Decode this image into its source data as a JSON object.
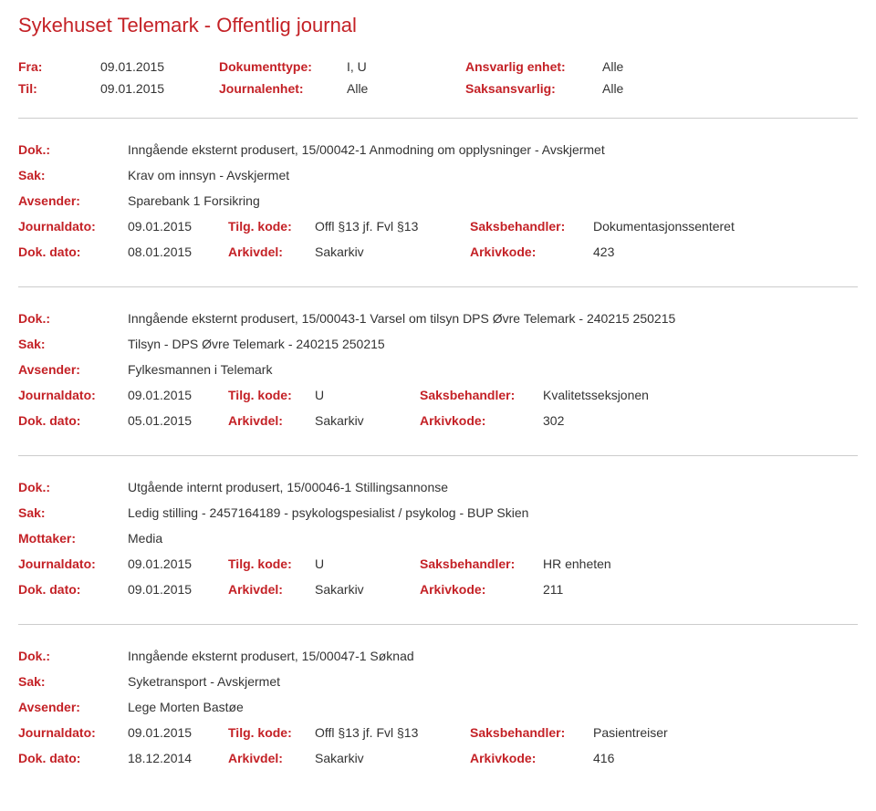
{
  "title": "Sykehuset Telemark - Offentlig journal",
  "header": {
    "fra_label": "Fra:",
    "fra_value": "09.01.2015",
    "til_label": "Til:",
    "til_value": "09.01.2015",
    "dokumenttype_label": "Dokumenttype:",
    "dokumenttype_value": "I, U",
    "journalenhet_label": "Journalenhet:",
    "journalenhet_value": "Alle",
    "ansvarlig_enhet_label": "Ansvarlig enhet:",
    "ansvarlig_enhet_value": "Alle",
    "saksansvarlig_label": "Saksansvarlig:",
    "saksansvarlig_value": "Alle"
  },
  "labels": {
    "dok": "Dok.:",
    "sak": "Sak:",
    "avsender": "Avsender:",
    "mottaker": "Mottaker:",
    "journaldato": "Journaldato:",
    "tilgkode": "Tilg. kode:",
    "saksbehandler": "Saksbehandler:",
    "dokdato": "Dok. dato:",
    "arkivdel": "Arkivdel:",
    "arkivkode": "Arkivkode:"
  },
  "records": [
    {
      "dok": "Inngående eksternt produsert, 15/00042-1 Anmodning om opplysninger - Avskjermet",
      "sak": "Krav om innsyn - Avskjermet",
      "sender_label": "Avsender:",
      "sender": "Sparebank 1 Forsikring",
      "journaldato": "09.01.2015",
      "tilgkode": "Offl §13 jf. Fvl §13",
      "saksbehandler": "Dokumentasjonssenteret",
      "dokdato": "08.01.2015",
      "arkivdel": "Sakarkiv",
      "arkivkode": "423",
      "tilg_wide": true
    },
    {
      "dok": "Inngående eksternt produsert, 15/00043-1 Varsel om tilsyn DPS Øvre Telemark - 240215 250215",
      "sak": "Tilsyn - DPS Øvre Telemark - 240215 250215",
      "sender_label": "Avsender:",
      "sender": "Fylkesmannen i Telemark",
      "journaldato": "09.01.2015",
      "tilgkode": "U",
      "saksbehandler": "Kvalitetsseksjonen",
      "dokdato": "05.01.2015",
      "arkivdel": "Sakarkiv",
      "arkivkode": "302",
      "tilg_wide": false
    },
    {
      "dok": "Utgående internt produsert, 15/00046-1 Stillingsannonse",
      "sak": "Ledig stilling - 2457164189 - psykologspesialist / psykolog - BUP Skien",
      "sender_label": "Mottaker:",
      "sender": "Media",
      "journaldato": "09.01.2015",
      "tilgkode": "U",
      "saksbehandler": "HR enheten",
      "dokdato": "09.01.2015",
      "arkivdel": "Sakarkiv",
      "arkivkode": "211",
      "tilg_wide": false
    },
    {
      "dok": "Inngående eksternt produsert, 15/00047-1 Søknad",
      "sak": "Syketransport - Avskjermet",
      "sender_label": "Avsender:",
      "sender": "Lege Morten Bastøe",
      "journaldato": "09.01.2015",
      "tilgkode": "Offl §13 jf. Fvl §13",
      "saksbehandler": "Pasientreiser",
      "dokdato": "18.12.2014",
      "arkivdel": "Sakarkiv",
      "arkivkode": "416",
      "tilg_wide": true
    }
  ]
}
